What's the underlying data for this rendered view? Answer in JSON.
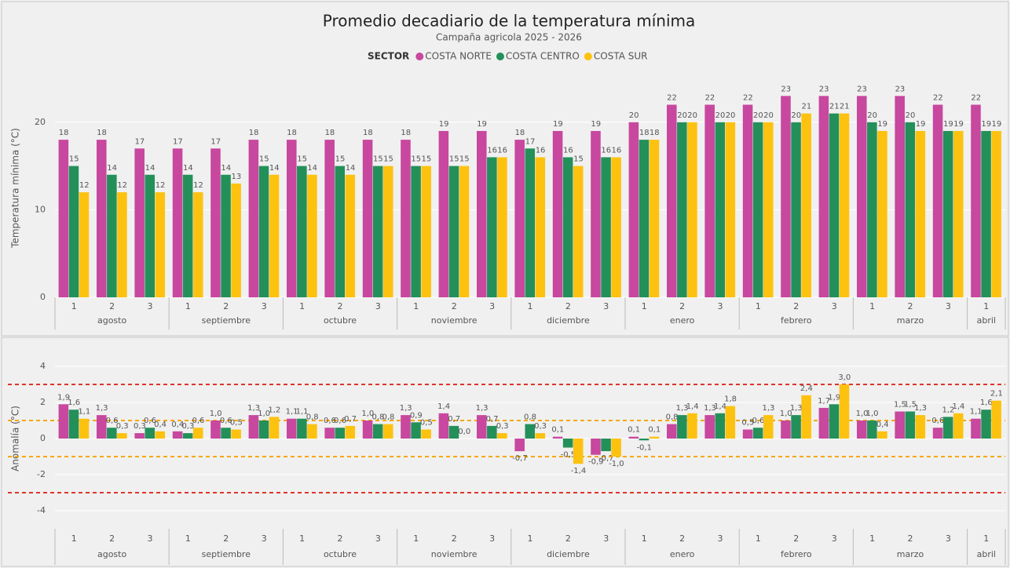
{
  "chart_data": [
    {
      "type": "bar",
      "title": "Promedio decadiario de la temperatura mínima",
      "subtitle": "Campaña agricola 2025 - 2026",
      "y_label": "Temperatura mínima (°C)",
      "legend_title": "SECTOR",
      "grid": true,
      "ylim": [
        0,
        25
      ],
      "yticks": [
        0,
        10,
        20
      ],
      "groups": [
        {
          "label": "agosto",
          "categories": [
            "1",
            "2",
            "3"
          ]
        },
        {
          "label": "septiembre",
          "categories": [
            "1",
            "2",
            "3"
          ]
        },
        {
          "label": "octubre",
          "categories": [
            "1",
            "2",
            "3"
          ]
        },
        {
          "label": "noviembre",
          "categories": [
            "1",
            "2",
            "3"
          ]
        },
        {
          "label": "diciembre",
          "categories": [
            "1",
            "2",
            "3"
          ]
        },
        {
          "label": "enero",
          "categories": [
            "1",
            "2",
            "3"
          ]
        },
        {
          "label": "febrero",
          "categories": [
            "1",
            "2",
            "3"
          ]
        },
        {
          "label": "marzo",
          "categories": [
            "1",
            "2",
            "3"
          ]
        },
        {
          "label": "abril",
          "categories": [
            "1"
          ]
        }
      ],
      "series": [
        {
          "name": "COSTA NORTE",
          "color": "#c8479f",
          "values": [
            18,
            18,
            17,
            17,
            17,
            18,
            18,
            18,
            18,
            18,
            19,
            19,
            18,
            19,
            19,
            20,
            22,
            22,
            22,
            23,
            23,
            23,
            23,
            22,
            22
          ]
        },
        {
          "name": "COSTA CENTRO",
          "color": "#23905a",
          "values": [
            15,
            14,
            14,
            14,
            14,
            15,
            15,
            15,
            15,
            15,
            15,
            16,
            17,
            16,
            16,
            18,
            20,
            20,
            20,
            20,
            21,
            20,
            20,
            19,
            19
          ]
        },
        {
          "name": "COSTA SUR",
          "color": "#fdc210",
          "values": [
            12,
            12,
            12,
            12,
            13,
            14,
            14,
            14,
            15,
            15,
            15,
            16,
            16,
            15,
            16,
            18,
            20,
            20,
            20,
            21,
            21,
            19,
            19,
            19,
            19
          ]
        }
      ]
    },
    {
      "type": "bar",
      "y_label": "Anomalía (°C)",
      "grid": true,
      "ylim": [
        -5,
        5
      ],
      "yticks": [
        -4,
        -2,
        0,
        2,
        4
      ],
      "reference_lines": [
        {
          "value": 3,
          "color": "#e0342a"
        },
        {
          "value": -3,
          "color": "#e0342a"
        },
        {
          "value": 1,
          "color": "#f5a800"
        },
        {
          "value": -1,
          "color": "#f5a800"
        }
      ],
      "groups": [
        {
          "label": "agosto",
          "categories": [
            "1",
            "2",
            "3"
          ]
        },
        {
          "label": "septiembre",
          "categories": [
            "1",
            "2",
            "3"
          ]
        },
        {
          "label": "octubre",
          "categories": [
            "1",
            "2",
            "3"
          ]
        },
        {
          "label": "noviembre",
          "categories": [
            "1",
            "2",
            "3"
          ]
        },
        {
          "label": "diciembre",
          "categories": [
            "1",
            "2",
            "3"
          ]
        },
        {
          "label": "enero",
          "categories": [
            "1",
            "2",
            "3"
          ]
        },
        {
          "label": "febrero",
          "categories": [
            "1",
            "2",
            "3"
          ]
        },
        {
          "label": "marzo",
          "categories": [
            "1",
            "2",
            "3"
          ]
        },
        {
          "label": "abril",
          "categories": [
            "1"
          ]
        }
      ],
      "series": [
        {
          "color": "#c8479f",
          "values": [
            1.9,
            1.3,
            0.3,
            0.4,
            1.0,
            1.3,
            1.1,
            0.6,
            1.0,
            1.3,
            1.4,
            1.3,
            -0.7,
            0.1,
            -0.9,
            0.1,
            0.8,
            1.3,
            0.5,
            1.0,
            1.7,
            1.0,
            1.5,
            0.6,
            1.1
          ],
          "value_labels": [
            "1,9",
            "1,3",
            "0,3",
            "0,4",
            "1,0",
            "1,3",
            "1,1",
            "0,6",
            "1,0",
            "1,3",
            "1,4",
            "1,3",
            "-0,7",
            "0,1",
            "-0,9",
            "0,1",
            "0,8",
            "1,3",
            "0,5",
            "1,0",
            "1,7",
            "1,0",
            "1,5",
            "0,6",
            "1,1"
          ]
        },
        {
          "color": "#23905a",
          "values": [
            1.6,
            0.6,
            0.6,
            0.3,
            0.6,
            1.0,
            1.1,
            0.6,
            0.8,
            0.9,
            0.7,
            0.7,
            0.8,
            -0.5,
            -0.7,
            -0.1,
            1.3,
            1.4,
            0.6,
            1.3,
            1.9,
            1.0,
            1.5,
            1.2,
            1.6
          ],
          "value_labels": [
            "1,6",
            "0,6",
            "0,6",
            "0,3",
            "0,6",
            "1,0",
            "1,1",
            "0,6",
            "0,8",
            "0,9",
            "0,7",
            "0,7",
            "0,8",
            "-0,5",
            "-0,7",
            "-0,1",
            "1,3",
            "1,4",
            "0,6",
            "1,3",
            "1,9",
            "1,0",
            "1,5",
            "1,2",
            "1,6"
          ]
        },
        {
          "color": "#fdc210",
          "values": [
            1.1,
            0.3,
            0.4,
            0.6,
            0.5,
            1.2,
            0.8,
            0.7,
            0.8,
            0.5,
            0.0,
            0.3,
            0.3,
            -1.4,
            -1.0,
            0.1,
            1.4,
            1.8,
            1.3,
            2.4,
            3.0,
            0.4,
            1.3,
            1.4,
            2.1
          ],
          "value_labels": [
            "1,1",
            "0,3",
            "0,4",
            "0,6",
            "0,5",
            "1,2",
            "0,8",
            "0,7",
            "0,8",
            "0,5",
            "0,0",
            "0,3",
            "0,3",
            "-1,4",
            "-1,0",
            "0,1",
            "1,4",
            "1,8",
            "1,3",
            "2,4",
            "3,0",
            "0,4",
            "1,3",
            "1,4",
            "2,1"
          ]
        }
      ]
    }
  ]
}
